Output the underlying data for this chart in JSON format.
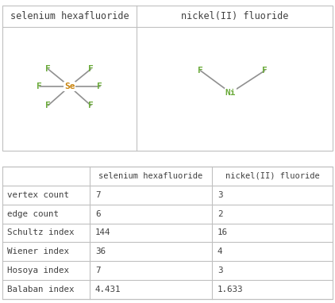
{
  "title1": "selenium hexafluoride",
  "title2": "nickel(II) fluoride",
  "row_labels": [
    "vertex count",
    "edge count",
    "Schultz index",
    "Wiener index",
    "Hosoya index",
    "Balaban index"
  ],
  "col1_values": [
    "7",
    "6",
    "144",
    "36",
    "7",
    "4.431"
  ],
  "col2_values": [
    "3",
    "2",
    "16",
    "4",
    "3",
    "1.633"
  ],
  "f_color": "#6aaa3a",
  "se_color": "#c8820a",
  "ni_color": "#6aaa3a",
  "bond_color": "#909090",
  "border_color": "#c0c0c0",
  "text_color": "#404040",
  "bg_color": "#ffffff"
}
